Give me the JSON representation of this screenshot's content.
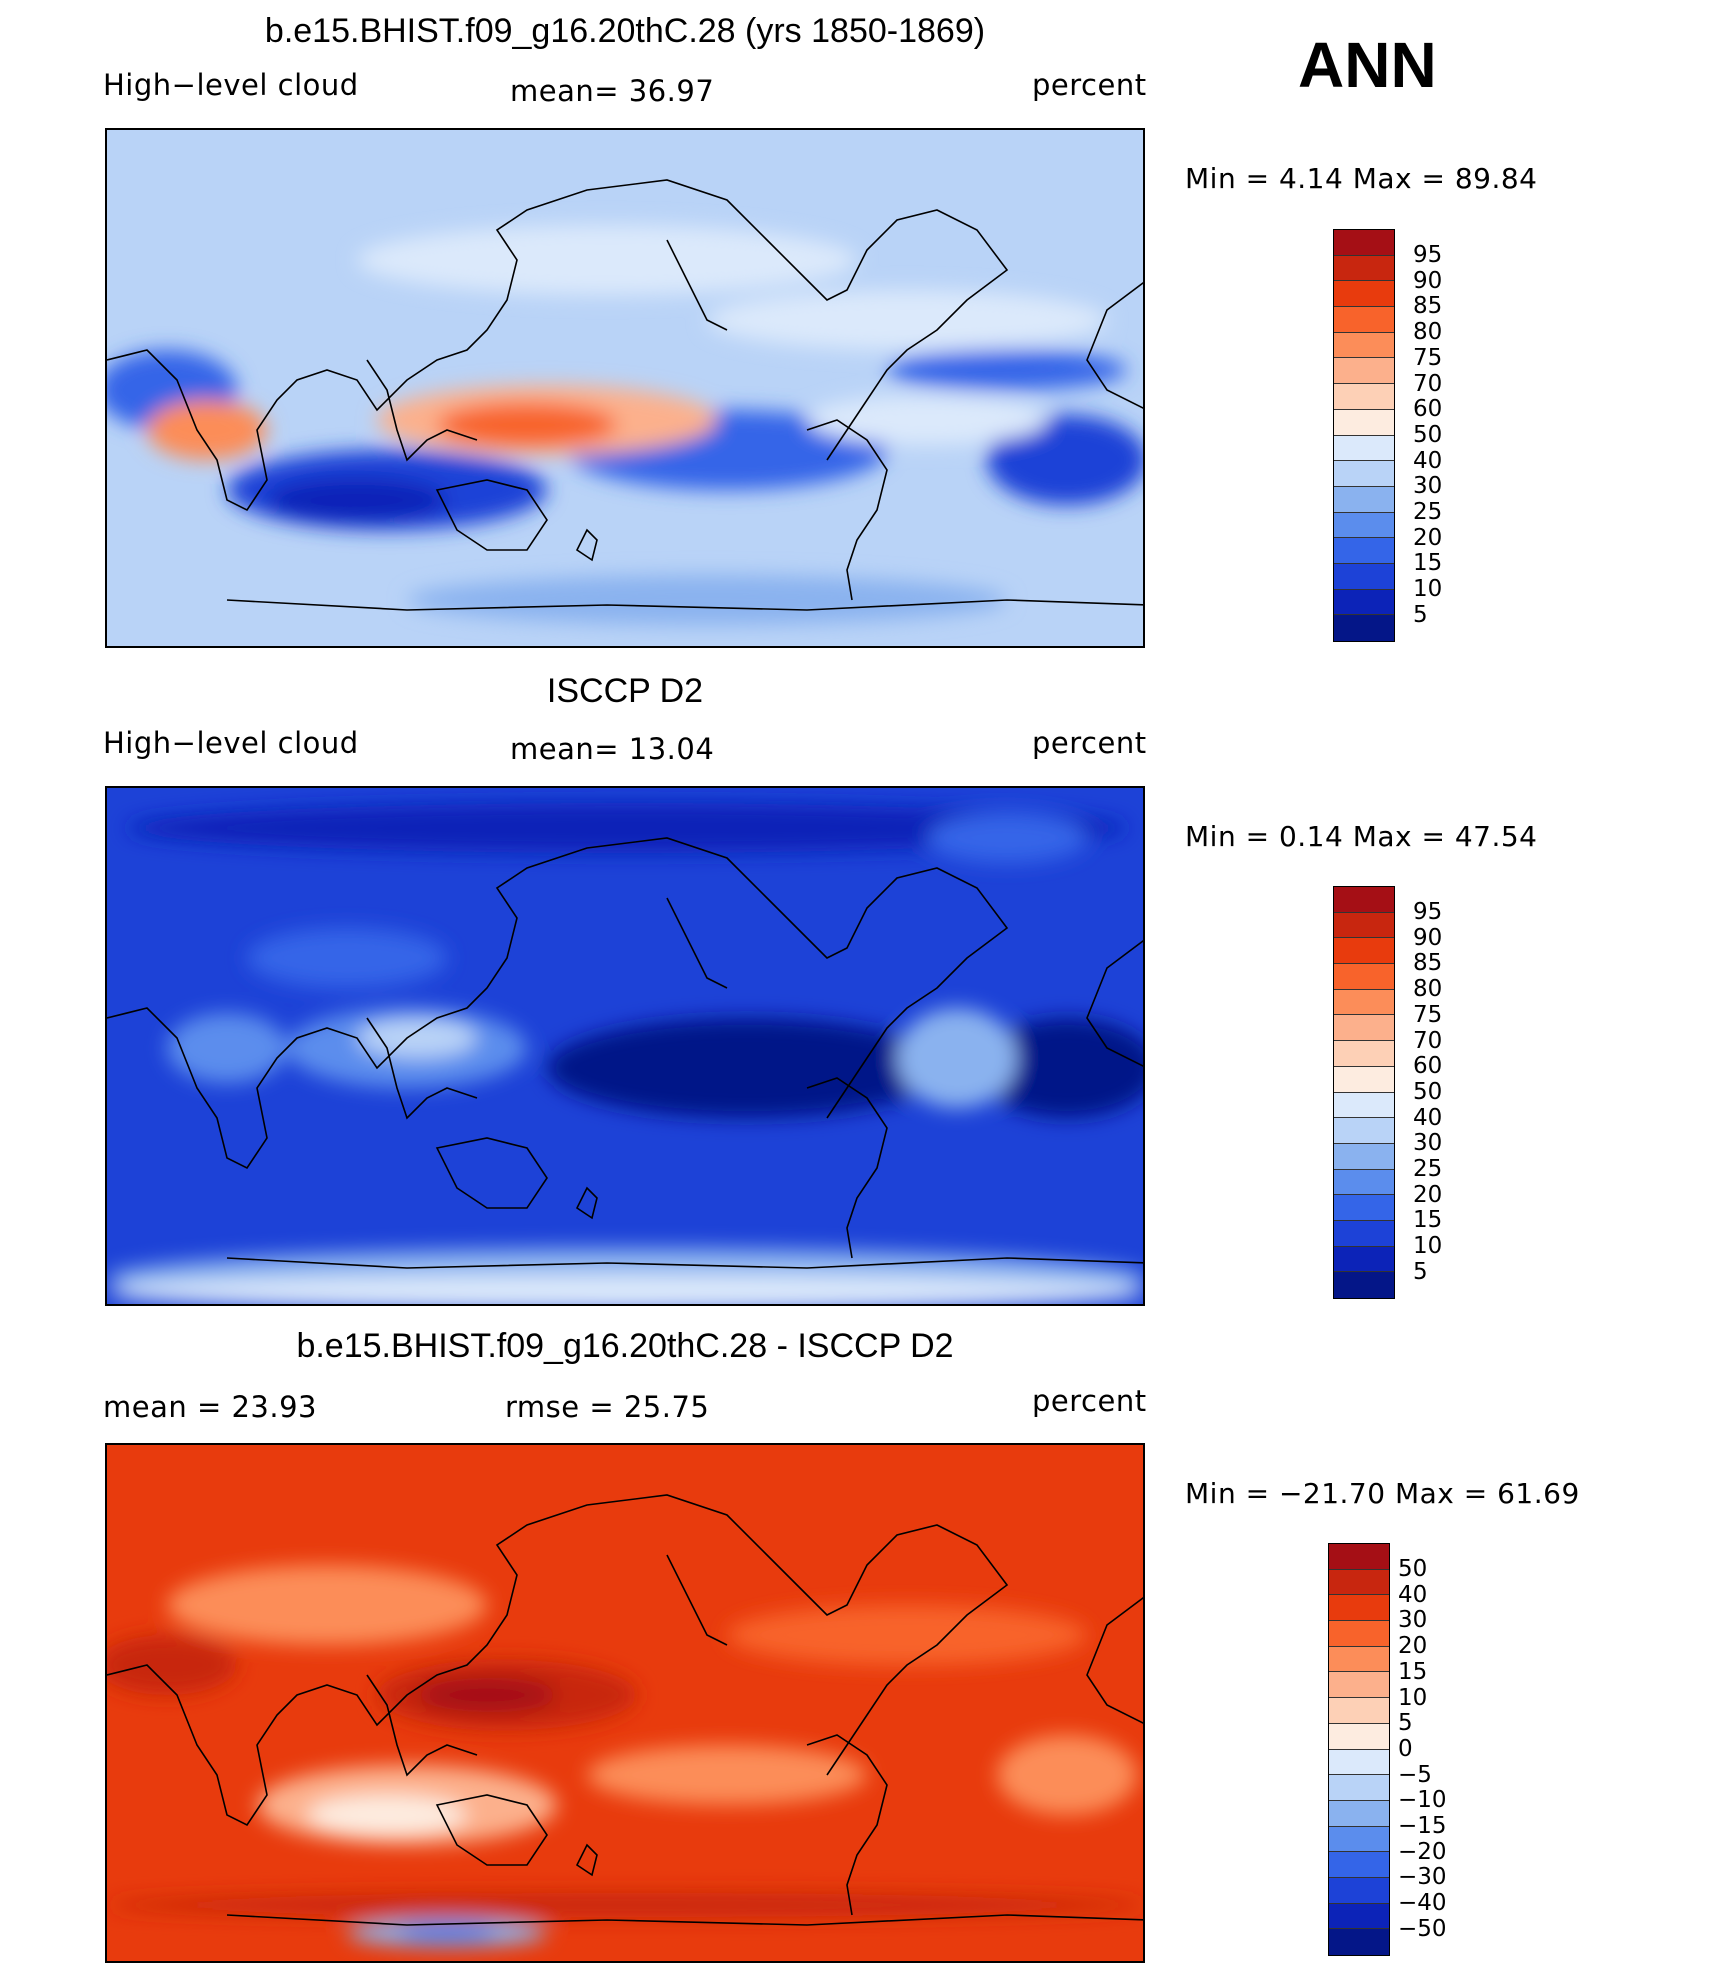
{
  "season": "ANN",
  "panels": [
    {
      "title": "b.e15.BHIST.f09_g16.20thC.28 (yrs 1850-1869)",
      "left_label": "High−level cloud",
      "stat1": "mean=   36.97",
      "stat2": "",
      "units": "percent",
      "minmax": "Min  =    4.14  Max  =   89.84",
      "colorbar": {
        "labels": [
          "95",
          "90",
          "85",
          "80",
          "75",
          "70",
          "60",
          "50",
          "40",
          "30",
          "25",
          "20",
          "15",
          "10",
          "5"
        ],
        "colors": [
          "#a50f15",
          "#c8260f",
          "#e83b0d",
          "#f8632b",
          "#fc8d59",
          "#fcb08c",
          "#fdd0b6",
          "#fdece0",
          "#dbe9fb",
          "#b9d3f7",
          "#8ab2ef",
          "#5b8ded",
          "#3465e8",
          "#1d42d7",
          "#0c23b8",
          "#041688"
        ]
      },
      "map_mode": "model"
    },
    {
      "title": "ISCCP D2",
      "left_label": "High−level cloud",
      "stat1": "mean=   13.04",
      "stat2": "",
      "units": "percent",
      "minmax": "Min  =    0.14  Max  =   47.54",
      "colorbar": {
        "labels": [
          "95",
          "90",
          "85",
          "80",
          "75",
          "70",
          "60",
          "50",
          "40",
          "30",
          "25",
          "20",
          "15",
          "10",
          "5"
        ],
        "colors": [
          "#a50f15",
          "#c8260f",
          "#e83b0d",
          "#f8632b",
          "#fc8d59",
          "#fcb08c",
          "#fdd0b6",
          "#fdece0",
          "#dbe9fb",
          "#b9d3f7",
          "#8ab2ef",
          "#5b8ded",
          "#3465e8",
          "#1d42d7",
          "#0c23b8",
          "#041688"
        ]
      },
      "map_mode": "obs"
    },
    {
      "title": "b.e15.BHIST.f09_g16.20thC.28 - ISCCP D2",
      "left_label": "mean  =    23.93",
      "stat1": "rmse  =    25.75",
      "stat2": "",
      "units": "percent",
      "minmax": "Min  = −21.70  Max  =   61.69",
      "colorbar": {
        "labels": [
          "50",
          "40",
          "30",
          "20",
          "15",
          "10",
          "5",
          "0",
          "−5",
          "−10",
          "−15",
          "−20",
          "−30",
          "−40",
          "−50"
        ],
        "colors": [
          "#a50f15",
          "#c8260f",
          "#e83b0d",
          "#f8632b",
          "#fc8d59",
          "#fcb08c",
          "#fdd0b6",
          "#fdece0",
          "#dbe9fb",
          "#b9d3f7",
          "#8ab2ef",
          "#5b8ded",
          "#3465e8",
          "#1d42d7",
          "#0c23b8",
          "#041688"
        ]
      },
      "map_mode": "diff"
    }
  ]
}
